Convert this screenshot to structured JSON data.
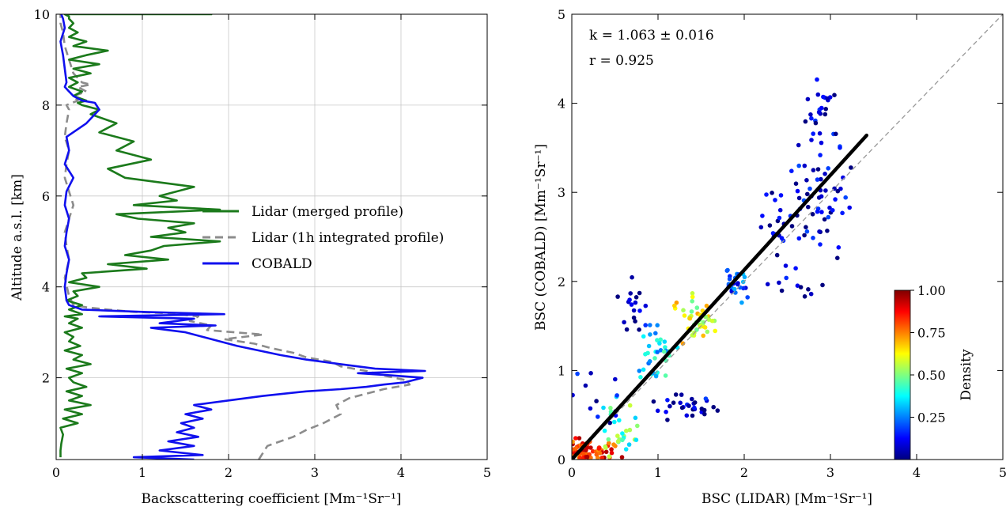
{
  "chart_data": [
    {
      "type": "line",
      "xlabel": "Backscattering coefficient [Mm⁻¹Sr⁻¹]",
      "ylabel": "Altitude a.s.l. [km]",
      "xlim": [
        0,
        5
      ],
      "ylim": [
        0.2,
        10
      ],
      "xticks": [
        "0",
        "1",
        "2",
        "3",
        "4",
        "5"
      ],
      "yticks": [
        "2",
        "4",
        "6",
        "8",
        "10"
      ],
      "grid": true,
      "legend_position": "center-right",
      "series": [
        {
          "name": "Lidar (merged profile)",
          "color": "#1b7a1b",
          "style": "solid",
          "x": [
            0.05,
            0.05,
            0.06,
            0.08,
            0.05,
            0.25,
            0.08,
            0.3,
            0.1,
            0.4,
            0.15,
            0.3,
            0.12,
            0.35,
            0.2,
            0.15,
            0.3,
            0.12,
            0.4,
            0.2,
            0.3,
            0.1,
            0.28,
            0.15,
            0.2,
            0.1,
            0.3,
            0.15,
            0.25,
            0.1,
            0.3,
            0.15,
            0.3,
            0.12,
            0.25,
            0.2,
            0.5,
            0.15,
            0.35,
            0.3,
            1.05,
            0.6,
            1.3,
            0.8,
            1.1,
            1.25,
            1.9,
            1.1,
            1.5,
            1.3,
            1.6,
            0.95,
            0.7,
            1.9,
            0.9,
            1.4,
            1.2,
            1.6,
            0.8,
            0.6,
            1.1,
            0.7,
            0.9,
            0.5,
            0.7,
            0.4,
            0.5,
            0.3,
            0.25,
            0.35,
            0.2,
            0.3,
            0.15,
            0.25,
            0.15,
            0.4,
            0.2,
            0.5,
            0.15,
            0.35,
            0.6,
            0.2,
            0.35,
            0.15,
            0.25,
            0.15,
            0.2,
            0.15,
            0.15,
            0.1,
            0.12,
            0.1,
            0.12,
            0.1,
            0.1,
            0.25,
            0.3,
            0.3,
            0.15,
            0.8,
            0.6,
            0.5,
            0.3,
            1.1,
            0.6,
            1.15,
            0.7,
            1.45,
            1.0,
            1.7,
            1.2,
            1.65,
            0.9,
            1.55,
            1.8,
            1.4,
            1.1,
            1.1,
            1.6,
            1.0,
            1.3
          ],
          "y": [
            0.25,
            0.4,
            0.55,
            0.75,
            0.9,
            1.0,
            1.1,
            1.2,
            1.3,
            1.4,
            1.5,
            1.6,
            1.7,
            1.8,
            1.9,
            2.0,
            2.1,
            2.2,
            2.3,
            2.4,
            2.5,
            2.6,
            2.7,
            2.8,
            2.9,
            3.0,
            3.1,
            3.2,
            3.3,
            3.35,
            3.4,
            3.5,
            3.6,
            3.7,
            3.8,
            3.9,
            4.0,
            4.1,
            4.2,
            4.3,
            4.4,
            4.5,
            4.6,
            4.7,
            4.8,
            4.9,
            5.0,
            5.1,
            5.2,
            5.3,
            5.4,
            5.5,
            5.6,
            5.7,
            5.8,
            5.9,
            6.0,
            6.2,
            6.4,
            6.6,
            6.8,
            7.0,
            7.2,
            7.4,
            7.6,
            7.8,
            7.9,
            8.0,
            8.05,
            8.1,
            8.2,
            8.3,
            8.4,
            8.5,
            8.6,
            8.7,
            8.8,
            8.9,
            9.0,
            9.1,
            9.2,
            9.3,
            9.4,
            9.5,
            9.6,
            9.7,
            9.8,
            9.9,
            9.95,
            10.0,
            10.0,
            10.0,
            10.0,
            10.0,
            10.0,
            10.0,
            10.0,
            10.0,
            10.0,
            10.0,
            10.0,
            10.0,
            10.0,
            10.0,
            10.0,
            10.0,
            10.0,
            10.0,
            10.0,
            10.0,
            10.0,
            10.0,
            10.0,
            10.0,
            10.0,
            10.0,
            10.0,
            10.0,
            10.0,
            10.0,
            10.0
          ]
        },
        {
          "name": "Lidar (1h integrated profile)",
          "color": "#8c8c8c",
          "style": "dashed",
          "x": [
            2.35,
            2.4,
            2.45,
            2.6,
            2.75,
            2.9,
            3.1,
            3.3,
            3.25,
            3.4,
            3.6,
            3.8,
            4.1,
            4.05,
            3.8,
            3.6,
            3.3,
            3.2,
            2.9,
            2.75,
            2.5,
            2.3,
            1.95,
            2.4,
            1.75,
            1.8,
            1.55,
            1.65,
            1.3,
            0.9,
            0.6,
            0.35,
            0.2,
            0.15,
            0.1,
            0.15,
            0.12,
            0.1,
            0.15,
            0.2,
            0.15,
            0.1,
            0.12,
            0.15,
            0.1,
            0.12,
            0.15,
            0.12,
            0.25,
            0.2,
            0.35,
            0.25,
            0.4,
            0.3,
            0.2,
            0.15,
            0.1,
            0.08,
            0.05,
            0.05
          ],
          "y": [
            0.2,
            0.35,
            0.5,
            0.6,
            0.7,
            0.85,
            1.0,
            1.2,
            1.4,
            1.55,
            1.65,
            1.75,
            1.85,
            1.95,
            2.05,
            2.15,
            2.25,
            2.35,
            2.45,
            2.55,
            2.65,
            2.75,
            2.85,
            2.95,
            3.05,
            3.15,
            3.25,
            3.35,
            3.42,
            3.45,
            3.5,
            3.55,
            3.6,
            3.8,
            4.2,
            4.6,
            4.9,
            5.2,
            5.5,
            5.8,
            6.1,
            6.4,
            6.7,
            7.0,
            7.3,
            7.6,
            7.9,
            8.0,
            8.1,
            8.2,
            8.3,
            8.4,
            8.45,
            8.5,
            8.7,
            9.0,
            9.3,
            9.6,
            9.8,
            10.0
          ]
        },
        {
          "name": "COBALD",
          "color": "#1010ee",
          "style": "solid",
          "x": [
            1.6,
            0.9,
            1.7,
            1.2,
            1.6,
            1.3,
            1.65,
            1.4,
            1.6,
            1.45,
            1.7,
            1.5,
            1.8,
            1.6,
            2.0,
            2.4,
            2.9,
            3.3,
            3.6,
            3.8,
            4.05,
            4.25,
            3.9,
            3.5,
            4.28,
            3.7,
            3.3,
            2.9,
            2.6,
            2.35,
            2.1,
            1.9,
            1.7,
            1.5,
            1.3,
            1.1,
            1.85,
            1.2,
            1.6,
            0.5,
            1.95,
            1.0,
            0.3,
            0.15,
            0.12,
            0.1,
            0.12,
            0.15,
            0.1,
            0.12,
            0.15,
            0.1,
            0.12,
            0.2,
            0.1,
            0.15,
            0.12,
            0.35,
            0.5,
            0.45,
            0.3,
            0.2,
            0.15,
            0.1,
            0.12,
            0.1,
            0.08,
            0.05,
            0.1,
            0.08,
            0.06
          ],
          "y": [
            0.2,
            0.25,
            0.3,
            0.4,
            0.5,
            0.6,
            0.7,
            0.8,
            0.9,
            1.0,
            1.1,
            1.2,
            1.3,
            1.4,
            1.5,
            1.6,
            1.7,
            1.75,
            1.8,
            1.85,
            1.9,
            2.0,
            2.05,
            2.1,
            2.15,
            2.2,
            2.3,
            2.4,
            2.5,
            2.6,
            2.7,
            2.8,
            2.9,
            3.0,
            3.05,
            3.1,
            3.15,
            3.2,
            3.3,
            3.35,
            3.4,
            3.45,
            3.5,
            3.6,
            3.7,
            4.0,
            4.3,
            4.6,
            4.9,
            5.2,
            5.5,
            5.8,
            6.1,
            6.4,
            6.7,
            7.0,
            7.3,
            7.6,
            7.9,
            8.05,
            8.1,
            8.2,
            8.3,
            8.4,
            8.5,
            8.8,
            9.1,
            9.4,
            9.7,
            9.9,
            10.0
          ]
        }
      ]
    },
    {
      "type": "scatter",
      "xlabel": "BSC (LIDAR) [Mm⁻¹Sr⁻¹]",
      "ylabel": "BSC (COBALD) [Mm⁻¹Sr⁻¹]",
      "xlim": [
        0,
        5
      ],
      "ylim": [
        0,
        5
      ],
      "xticks": [
        "0",
        "1",
        "2",
        "3",
        "4",
        "5"
      ],
      "yticks": [
        "0",
        "1",
        "2",
        "3",
        "4",
        "5"
      ],
      "grid": false,
      "annotations": [
        "k = 1.063 ± 0.016",
        "r = 0.925"
      ],
      "fit_line": {
        "x": [
          0,
          3.42
        ],
        "y": [
          0,
          3.64
        ],
        "color": "#000000"
      },
      "identity_line": {
        "x": [
          0,
          5
        ],
        "y": [
          0,
          5
        ],
        "color": "#999999",
        "style": "dashed"
      },
      "colorbar": {
        "label": "Density",
        "ticks": [
          "0.25",
          "0.50",
          "0.75",
          "1.00"
        ],
        "range": [
          0,
          1
        ]
      }
    }
  ]
}
